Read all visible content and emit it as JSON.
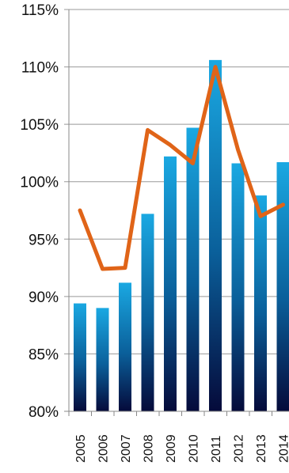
{
  "chart_data": {
    "type": "bar",
    "categories": [
      "2005",
      "2006",
      "2007",
      "2008",
      "2009",
      "2010",
      "2011",
      "2012",
      "2013",
      "2014"
    ],
    "series": [
      {
        "kind": "bar",
        "values": [
          89.4,
          89.0,
          91.2,
          97.2,
          102.2,
          104.7,
          110.6,
          101.6,
          98.8,
          101.7
        ]
      },
      {
        "kind": "line",
        "values": [
          97.5,
          92.4,
          92.5,
          104.5,
          103.2,
          101.6,
          110.0,
          102.8,
          97.0,
          98.0
        ]
      }
    ],
    "y_ticks": [
      "80%",
      "85%",
      "90%",
      "95%",
      "100%",
      "105%",
      "110%",
      "115%"
    ],
    "ylim": [
      80,
      115
    ],
    "grid": true,
    "colors": {
      "bar_top": "#1aa8e2",
      "bar_bottom": "#050a3a",
      "line": "#e06418",
      "grid": "#999999"
    }
  }
}
